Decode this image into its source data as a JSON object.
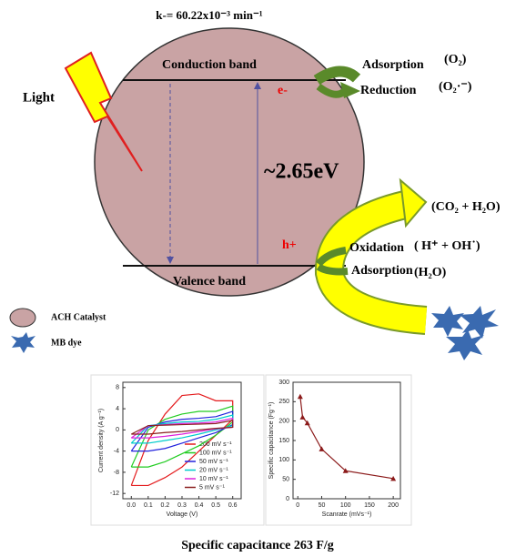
{
  "diagram": {
    "rate": "k-= 60.22x10⁻³ min⁻¹",
    "light": "Light",
    "conduction_band": "Conduction band",
    "valence_band": "Valence band",
    "electron": "e-",
    "hole": "h+",
    "band_gap": "~2.65eV",
    "adsorption_o2": "Adsorption",
    "o2": "(O₂)",
    "reduction": "Reduction",
    "superoxide": "(O₂·⁻)",
    "products": "(CO₂ + H₂O)",
    "oxidation": "Oxidation",
    "radicals": "( H⁺ + OH˙)",
    "adsorption_h2o": "Adsorption",
    "h2o": "(H₂O)",
    "legend_catalyst": "ACH Catalyst",
    "legend_dye": "MB dye",
    "caption": "Specific capacitance 263 F/g"
  },
  "chart_data": [
    {
      "type": "line",
      "xlabel": "Voltage (V)",
      "ylabel": "Current density (A g⁻¹)",
      "x": [
        0,
        0.1,
        0.2,
        0.3,
        0.4,
        0.5,
        0.6,
        0.6,
        0.5,
        0.4,
        0.3,
        0.2,
        0.1,
        0
      ],
      "series": [
        {
          "name": "200 mV s⁻¹",
          "color": "#e41a1c",
          "values": [
            -10.5,
            -2,
            3,
            6.5,
            6.8,
            5.5,
            5.5,
            2,
            -1,
            -4,
            -7,
            -9,
            -10.5,
            -10.5
          ]
        },
        {
          "name": "100 mV s⁻¹",
          "color": "#22cc22",
          "values": [
            -7,
            0,
            2,
            3,
            3.5,
            3.5,
            4.5,
            1.5,
            -1,
            -3,
            -4.5,
            -6,
            -7,
            -7
          ]
        },
        {
          "name": "50 mV s⁻¹",
          "color": "#2222dd",
          "values": [
            -4,
            0.5,
            1.5,
            2,
            2.2,
            2.5,
            3.5,
            1,
            -0.5,
            -1.5,
            -2.5,
            -3.5,
            -4,
            -4
          ]
        },
        {
          "name": "20 mV s⁻¹",
          "color": "#00cccc",
          "values": [
            -2.5,
            0.8,
            1.2,
            1.5,
            1.6,
            2,
            2.8,
            0.8,
            0,
            -0.8,
            -1.5,
            -2,
            -2.5,
            -2.5
          ]
        },
        {
          "name": "10 mV s⁻¹",
          "color": "#dd22dd",
          "values": [
            -1.5,
            0.8,
            1,
            1.2,
            1.3,
            1.5,
            2.2,
            0.5,
            0.2,
            -0.3,
            -0.8,
            -1.2,
            -1.5,
            -1.5
          ]
        },
        {
          "name": "5 mV s⁻¹",
          "color": "#8b2020",
          "values": [
            -0.8,
            0.8,
            0.9,
            1,
            1.1,
            1.2,
            1.8,
            0.5,
            0.3,
            0,
            -0.3,
            -0.5,
            -0.8,
            -0.8
          ]
        }
      ],
      "xlim": [
        -0.05,
        0.65
      ],
      "xticks": [
        {
          "value": 0,
          "label": "0.0"
        },
        0.1,
        0.2,
        0.3,
        0.4,
        0.5,
        0.6
      ],
      "ylim": [
        -13,
        9
      ],
      "yticks": [
        -12,
        -8,
        -4,
        0,
        4,
        8
      ]
    },
    {
      "type": "line",
      "markers": true,
      "xlabel": "Scanrate (mVs⁻¹)",
      "ylabel": "Specific capacitance (Fg⁻¹)",
      "x": [
        5,
        10,
        20,
        50,
        100,
        200
      ],
      "values": [
        263,
        210,
        195,
        128,
        72,
        52
      ],
      "color": "#8b1a1a",
      "xlim": [
        -10,
        215
      ],
      "xticks": [
        0,
        50,
        100,
        150,
        200
      ],
      "ylim": [
        0,
        300
      ],
      "yticks": [
        0,
        50,
        100,
        150,
        200,
        250,
        300
      ]
    }
  ]
}
